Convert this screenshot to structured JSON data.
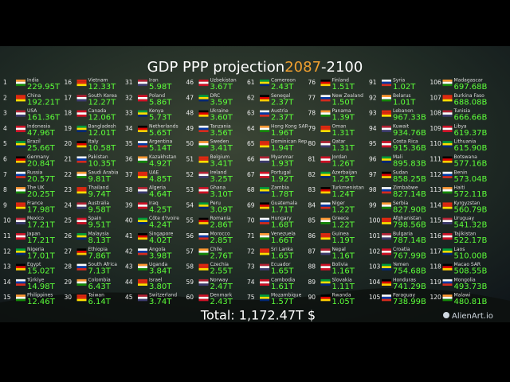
{
  "header": {
    "title": "GDP PPP projection",
    "year_start": "2087",
    "year_end": "-2100"
  },
  "rows": [
    {
      "rank": 1,
      "country": "India",
      "value": "229.95T"
    },
    {
      "rank": 2,
      "country": "China",
      "value": "192.21T"
    },
    {
      "rank": 3,
      "country": "USA",
      "value": "161.36T"
    },
    {
      "rank": 4,
      "country": "Indonesia",
      "value": "47.96T"
    },
    {
      "rank": 5,
      "country": "Brazil",
      "value": "25.66T"
    },
    {
      "rank": 6,
      "country": "Germany",
      "value": "20.84T"
    },
    {
      "rank": 7,
      "country": "Russia",
      "value": "20.57T"
    },
    {
      "rank": 8,
      "country": "The UK",
      "value": "20.25T"
    },
    {
      "rank": 9,
      "country": "France",
      "value": "17.98T"
    },
    {
      "rank": 10,
      "country": "Mexico",
      "value": "17.21T"
    },
    {
      "rank": 11,
      "country": "Japan",
      "value": "17.21T"
    },
    {
      "rank": 12,
      "country": "Nigeria",
      "value": "17.01T"
    },
    {
      "rank": 13,
      "country": "Egypt",
      "value": "15.02T"
    },
    {
      "rank": 14,
      "country": "Türkiye",
      "value": "14.98T"
    },
    {
      "rank": 15,
      "country": "Philippines",
      "value": "12.46T"
    },
    {
      "rank": 16,
      "country": "Vietnam",
      "value": "12.33T"
    },
    {
      "rank": 17,
      "country": "South Korea",
      "value": "12.27T"
    },
    {
      "rank": 18,
      "country": "Canada",
      "value": "12.06T"
    },
    {
      "rank": 19,
      "country": "Bangladesh",
      "value": "12.01T"
    },
    {
      "rank": 20,
      "country": "Italy",
      "value": "10.58T"
    },
    {
      "rank": 21,
      "country": "Pakistan",
      "value": "10.35T"
    },
    {
      "rank": 22,
      "country": "Saudi Arabia",
      "value": "9.81T"
    },
    {
      "rank": 23,
      "country": "Thailand",
      "value": "9.74T"
    },
    {
      "rank": 24,
      "country": "Australia",
      "value": "9.58T"
    },
    {
      "rank": 25,
      "country": "Spain",
      "value": "9.51T"
    },
    {
      "rank": 26,
      "country": "Malaysia",
      "value": "8.13T"
    },
    {
      "rank": 27,
      "country": "Ethiopia",
      "value": "7.86T"
    },
    {
      "rank": 28,
      "country": "South Africa",
      "value": "7.13T"
    },
    {
      "rank": 29,
      "country": "Colombia",
      "value": "6.43T"
    },
    {
      "rank": 30,
      "country": "Taiwan",
      "value": "6.14T"
    },
    {
      "rank": 31,
      "country": "Iran",
      "value": "5.98T"
    },
    {
      "rank": 32,
      "country": "Poland",
      "value": "5.86T"
    },
    {
      "rank": 33,
      "country": "Kenya",
      "value": "5.73T"
    },
    {
      "rank": 34,
      "country": "Netherlands",
      "value": "5.65T"
    },
    {
      "rank": 35,
      "country": "Argentina",
      "value": "5.14T"
    },
    {
      "rank": 36,
      "country": "Kazakhstan",
      "value": "4.92T"
    },
    {
      "rank": 37,
      "country": "UAE",
      "value": "4.85T"
    },
    {
      "rank": 38,
      "country": "Algeria",
      "value": "4.64T"
    },
    {
      "rank": 39,
      "country": "Iraq",
      "value": "4.25T"
    },
    {
      "rank": 40,
      "country": "Côte d'Ivoire",
      "value": "4.24T"
    },
    {
      "rank": 41,
      "country": "Singapore",
      "value": "4.02T"
    },
    {
      "rank": 42,
      "country": "Angola",
      "value": "3.98T"
    },
    {
      "rank": 43,
      "country": "Uganda",
      "value": "3.84T"
    },
    {
      "rank": 44,
      "country": "Israel",
      "value": "3.80T"
    },
    {
      "rank": 45,
      "country": "Switzerland",
      "value": "3.74T"
    },
    {
      "rank": 46,
      "country": "Uzbekistan",
      "value": "3.67T"
    },
    {
      "rank": 47,
      "country": "DRC",
      "value": "3.59T"
    },
    {
      "rank": 48,
      "country": "Ukraine",
      "value": "3.60T"
    },
    {
      "rank": 49,
      "country": "Tanzania",
      "value": "3.56T"
    },
    {
      "rank": 50,
      "country": "Sweden",
      "value": "3.41T"
    },
    {
      "rank": 51,
      "country": "Belgium",
      "value": "3.41T"
    },
    {
      "rank": 52,
      "country": "Ireland",
      "value": "3.25T"
    },
    {
      "rank": 53,
      "country": "Ghana",
      "value": "3.10T"
    },
    {
      "rank": 54,
      "country": "Peru",
      "value": "3.09T"
    },
    {
      "rank": 55,
      "country": "Romania",
      "value": "2.86T"
    },
    {
      "rank": 56,
      "country": "Morocco",
      "value": "2.85T"
    },
    {
      "rank": 57,
      "country": "Chile",
      "value": "2.76T"
    },
    {
      "rank": 58,
      "country": "Czechia",
      "value": "2.55T"
    },
    {
      "rank": 59,
      "country": "Norway",
      "value": "2.47T"
    },
    {
      "rank": 60,
      "country": "Denmark",
      "value": "2.43T"
    },
    {
      "rank": 61,
      "country": "Cameroon",
      "value": "2.43T"
    },
    {
      "rank": 62,
      "country": "Senegal",
      "value": "2.37T"
    },
    {
      "rank": 63,
      "country": "Austria",
      "value": "2.37T"
    },
    {
      "rank": 64,
      "country": "Hong Kong SAR",
      "value": "1.96T"
    },
    {
      "rank": 65,
      "country": "Dominican Rep.",
      "value": "1.94T"
    },
    {
      "rank": 66,
      "country": "Myanmar",
      "value": "1.93T"
    },
    {
      "rank": 67,
      "country": "Portugal",
      "value": "1.92T"
    },
    {
      "rank": 68,
      "country": "Zambia",
      "value": "1.78T"
    },
    {
      "rank": 69,
      "country": "Guatemala",
      "value": "1.71T"
    },
    {
      "rank": 70,
      "country": "Hungary",
      "value": "1.68T"
    },
    {
      "rank": 71,
      "country": "Venezuela",
      "value": "1.66T"
    },
    {
      "rank": 72,
      "country": "Sri Lanka",
      "value": "1.65T"
    },
    {
      "rank": 73,
      "country": "Ecuador",
      "value": "1.65T"
    },
    {
      "rank": 74,
      "country": "Cambodia",
      "value": "1.61T"
    },
    {
      "rank": 75,
      "country": "Mozambique",
      "value": "1.57T"
    },
    {
      "rank": 76,
      "country": "Finland",
      "value": "1.51T"
    },
    {
      "rank": 77,
      "country": "New Zealand",
      "value": "1.50T"
    },
    {
      "rank": 78,
      "country": "Panama",
      "value": "1.39T"
    },
    {
      "rank": 79,
      "country": "Oman",
      "value": "1.31T"
    },
    {
      "rank": 80,
      "country": "Qatar",
      "value": "1.31T"
    },
    {
      "rank": 81,
      "country": "Jordan",
      "value": "1.26T"
    },
    {
      "rank": 82,
      "country": "Azerbaijan",
      "value": "1.25T"
    },
    {
      "rank": 83,
      "country": "Turkmenistan",
      "value": "1.24T"
    },
    {
      "rank": 84,
      "country": "Niger",
      "value": "1.22T"
    },
    {
      "rank": 85,
      "country": "Greece",
      "value": "1.22T"
    },
    {
      "rank": 86,
      "country": "Guinea",
      "value": "1.19T"
    },
    {
      "rank": 87,
      "country": "Nepal",
      "value": "1.16T"
    },
    {
      "rank": 88,
      "country": "Bolivia",
      "value": "1.16T"
    },
    {
      "rank": 89,
      "country": "Slovakia",
      "value": "1.11T"
    },
    {
      "rank": 90,
      "country": "Rwanda",
      "value": "1.05T"
    },
    {
      "rank": 91,
      "country": "Syria",
      "value": "1.02T"
    },
    {
      "rank": 92,
      "country": "Belarus",
      "value": "1.01T"
    },
    {
      "rank": 93,
      "country": "Lebanon",
      "value": "967.33B"
    },
    {
      "rank": 94,
      "country": "Kuwait",
      "value": "934.76B"
    },
    {
      "rank": 95,
      "country": "Costa Rica",
      "value": "915.36B"
    },
    {
      "rank": 96,
      "country": "Mali",
      "value": "895.83B"
    },
    {
      "rank": 97,
      "country": "Sudan",
      "value": "858.25B"
    },
    {
      "rank": 98,
      "country": "Zimbabwe",
      "value": "827.14B"
    },
    {
      "rank": 99,
      "country": "Serbia",
      "value": "827.90B"
    },
    {
      "rank": 100,
      "country": "Afghanistan",
      "value": "798.56B"
    },
    {
      "rank": 101,
      "country": "Bulgaria",
      "value": "787.14B"
    },
    {
      "rank": 102,
      "country": "Croatia",
      "value": "767.99B"
    },
    {
      "rank": 103,
      "country": "Yemen",
      "value": "754.68B"
    },
    {
      "rank": 104,
      "country": "Honduras",
      "value": "741.29B"
    },
    {
      "rank": 105,
      "country": "Paraguay",
      "value": "738.99B"
    },
    {
      "rank": 106,
      "country": "Madagascar",
      "value": "697.68B"
    },
    {
      "rank": 107,
      "country": "Burkina Faso",
      "value": "688.08B"
    },
    {
      "rank": 108,
      "country": "Tunisia",
      "value": "666.66B"
    },
    {
      "rank": 109,
      "country": "Libya",
      "value": "619.37B"
    },
    {
      "rank": 110,
      "country": "Lithuania",
      "value": "615.90B"
    },
    {
      "rank": 111,
      "country": "Botswana",
      "value": "577.16B"
    },
    {
      "rank": 112,
      "country": "Benin",
      "value": "573.04B"
    },
    {
      "rank": 113,
      "country": "Haiti",
      "value": "572.11B"
    },
    {
      "rank": 114,
      "country": "Kyrgyzstan",
      "value": "560.79B"
    },
    {
      "rank": 115,
      "country": "Uruguay",
      "value": "541.32B"
    },
    {
      "rank": 116,
      "country": "Tajikistan",
      "value": "522.17B"
    },
    {
      "rank": 117,
      "country": "Laos",
      "value": "510.00B"
    },
    {
      "rank": 118,
      "country": "Macao SAR",
      "value": "508.55B"
    },
    {
      "rank": 119,
      "country": "Mongolia",
      "value": "493.73B"
    },
    {
      "rank": 120,
      "country": "Malawi",
      "value": "480.81B"
    }
  ],
  "footer": {
    "total": "Total: 1,172.47T $",
    "watermark": "AlienArt.io"
  }
}
